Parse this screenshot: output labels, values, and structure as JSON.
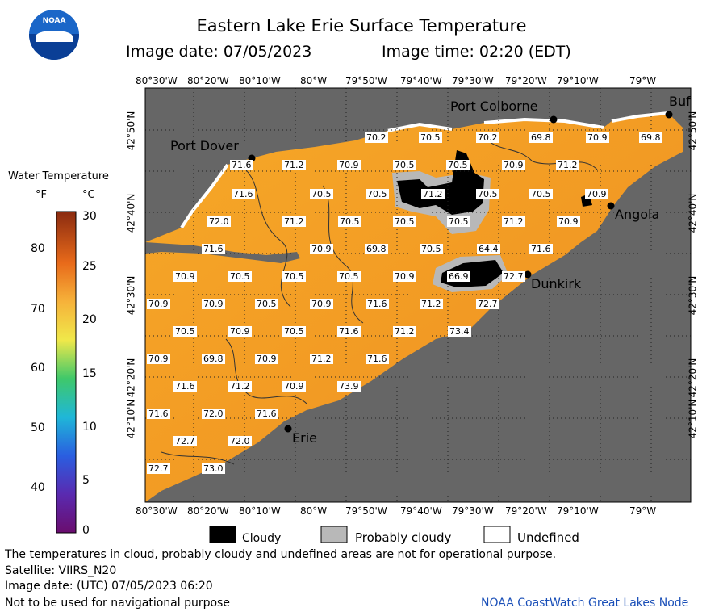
{
  "header": {
    "logo_text": "NOAA",
    "title": "Eastern Lake Erie Surface Temperature",
    "image_date": "Image date: 07/05/2023",
    "image_time": "Image time: 02:20 (EDT)"
  },
  "colorbar": {
    "title": "Water Temperature",
    "unit_f": "°F",
    "unit_c": "°C",
    "f_ticks": [
      "80",
      "70",
      "60",
      "50",
      "40"
    ],
    "c_ticks": [
      "30",
      "25",
      "20",
      "15",
      "10",
      "5",
      "0"
    ]
  },
  "axes": {
    "lon_labels": [
      "80°30'W",
      "80°20'W",
      "80°10'W",
      "80°W",
      "79°50'W",
      "79°40'W",
      "79°30'W",
      "79°20'W",
      "79°10'W",
      "79°W"
    ],
    "lat_labels": [
      "42°50'N",
      "42°40'N",
      "42°30'N",
      "42°20'N",
      "42°10'N"
    ]
  },
  "places": [
    {
      "name": "Port Colborne"
    },
    {
      "name": "Port Dover"
    },
    {
      "name": "Angola"
    },
    {
      "name": "Dunkirk"
    },
    {
      "name": "Erie"
    },
    {
      "name": "Buf"
    }
  ],
  "temperatures": [
    [
      "70.2",
      "70.5",
      "70.2",
      "69.8",
      "70.9",
      "69.8"
    ],
    [
      "71.6",
      "71.2",
      "70.9",
      "70.5",
      "70.5",
      "70.9",
      "71.2"
    ],
    [
      "71.6",
      "70.5",
      "70.5",
      "71.2",
      "70.5",
      "70.5",
      "70.9"
    ],
    [
      "72.0",
      "71.2",
      "70.5",
      "70.5",
      "70.5",
      "71.2",
      "70.9"
    ],
    [
      "71.6",
      "70.9",
      "69.8",
      "70.5",
      "64.4",
      "71.6"
    ],
    [
      "70.9",
      "70.5",
      "70.5",
      "70.5",
      "70.9",
      "66.9",
      "72.7"
    ],
    [
      "70.9",
      "70.9",
      "70.5",
      "70.9",
      "71.6",
      "71.2",
      "72.7"
    ],
    [
      "70.5",
      "70.9",
      "70.5",
      "71.6",
      "71.2",
      "73.4"
    ],
    [
      "70.9",
      "69.8",
      "70.9",
      "71.2",
      "71.6"
    ],
    [
      "71.6",
      "71.2",
      "70.9",
      "73.9"
    ],
    [
      "71.6",
      "72.0",
      "71.6"
    ],
    [
      "72.7",
      "72.0"
    ],
    [
      "72.7",
      "73.0"
    ]
  ],
  "legend": {
    "cloudy": "Cloudy",
    "probably_cloudy": "Probably cloudy",
    "undefined": "Undefined"
  },
  "footer": {
    "note": "The temperatures in cloud, probably cloudy and undefined areas are not for operational purpose.",
    "satellite": "Satellite: VIIRS_N20",
    "utc_date": "Image date: (UTC) 07/05/2023  06:20",
    "nav": "Not to be used for navigational purpose",
    "credit": "NOAA CoastWatch Great Lakes Node"
  },
  "colors": {
    "land": "#666666",
    "water": "#f4a020",
    "cloud": "#000000",
    "probably_cloud": "#b8b8b8"
  }
}
